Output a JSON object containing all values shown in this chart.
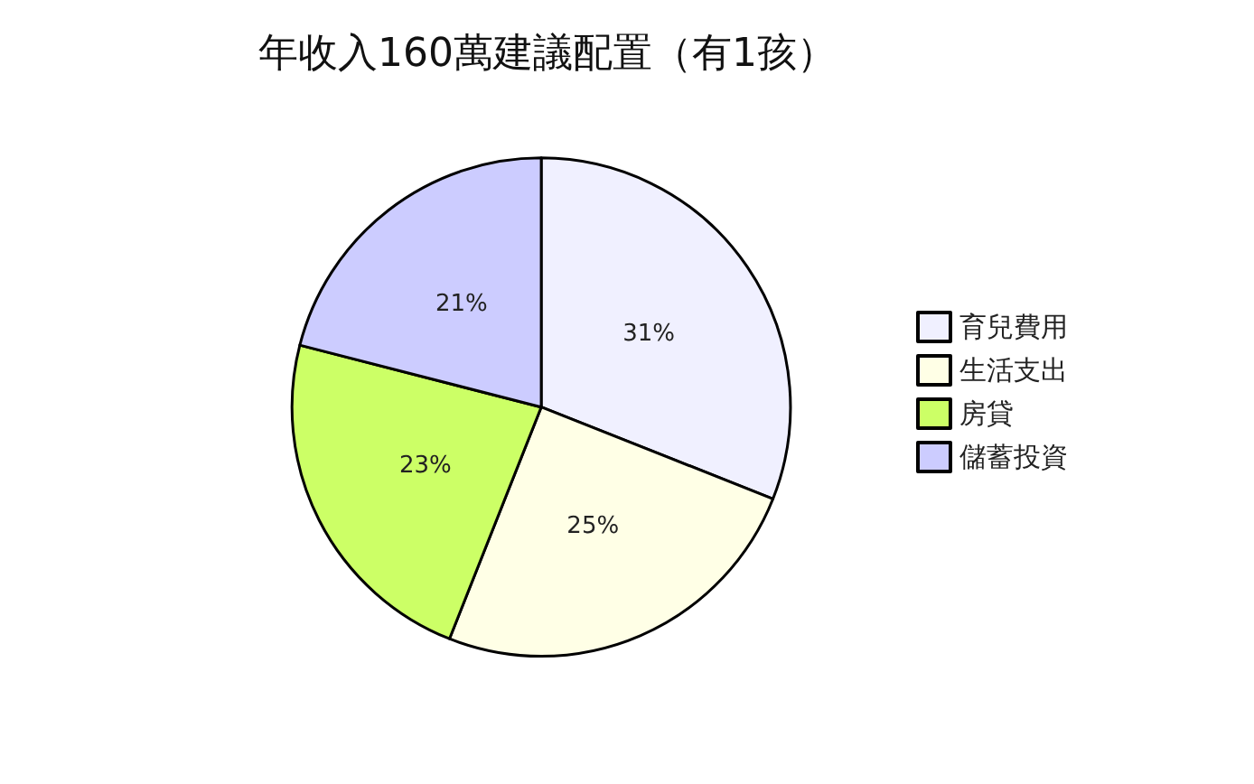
{
  "chart_data": {
    "type": "pie",
    "title": "年收入160萬建議配置（有1孩）",
    "categories": [
      "育兒費用",
      "生活支出",
      "房貸",
      "儲蓄投資"
    ],
    "values": [
      31,
      25,
      23,
      21
    ],
    "colors": [
      "#f0f0ff",
      "#ffffe6",
      "#ccff66",
      "#ccccff"
    ],
    "value_labels": [
      "31%",
      "25%",
      "23%",
      "21%"
    ],
    "legend": "right"
  }
}
